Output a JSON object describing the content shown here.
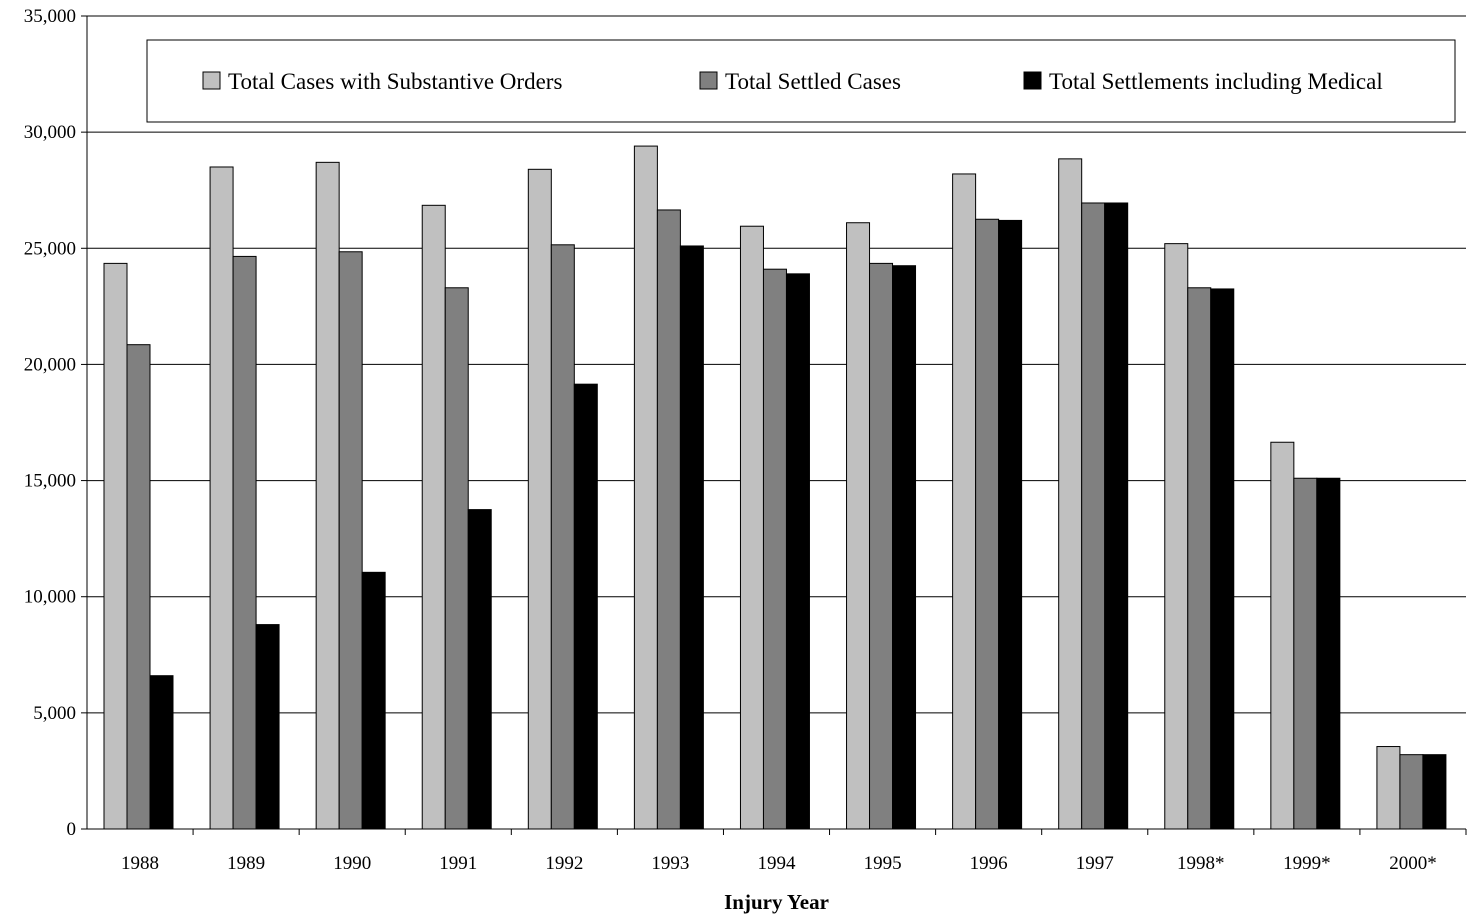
{
  "chart_data": {
    "type": "bar",
    "title": "",
    "xlabel": "Injury Year",
    "ylabel": "",
    "ylim": [
      0,
      35000
    ],
    "yticks": [
      0,
      5000,
      10000,
      15000,
      20000,
      25000,
      30000,
      35000
    ],
    "ytick_labels": [
      "0",
      "5,000",
      "10,000",
      "15,000",
      "20,000",
      "25,000",
      "30,000",
      "35,000"
    ],
    "grid": true,
    "legend_position": "top",
    "categories": [
      "1988",
      "1989",
      "1990",
      "1991",
      "1992",
      "1993",
      "1994",
      "1995",
      "1996",
      "1997",
      "1998*",
      "1999*",
      "2000*"
    ],
    "series": [
      {
        "name": "Total Cases with Substantive Orders",
        "color": "#c0c0c0",
        "values": [
          24350,
          28500,
          28700,
          26850,
          28400,
          29400,
          25950,
          26100,
          28200,
          28850,
          25200,
          16650,
          3550
        ]
      },
      {
        "name": "Total Settled Cases",
        "color": "#808080",
        "values": [
          20850,
          24650,
          24850,
          23300,
          25150,
          26650,
          24100,
          24350,
          26250,
          26950,
          23300,
          15100,
          3200
        ]
      },
      {
        "name": "Total Settlements including Medical",
        "color": "#000000",
        "values": [
          6600,
          8800,
          11050,
          13750,
          19150,
          25100,
          23900,
          24250,
          26200,
          26950,
          23250,
          15100,
          3200
        ]
      }
    ]
  }
}
